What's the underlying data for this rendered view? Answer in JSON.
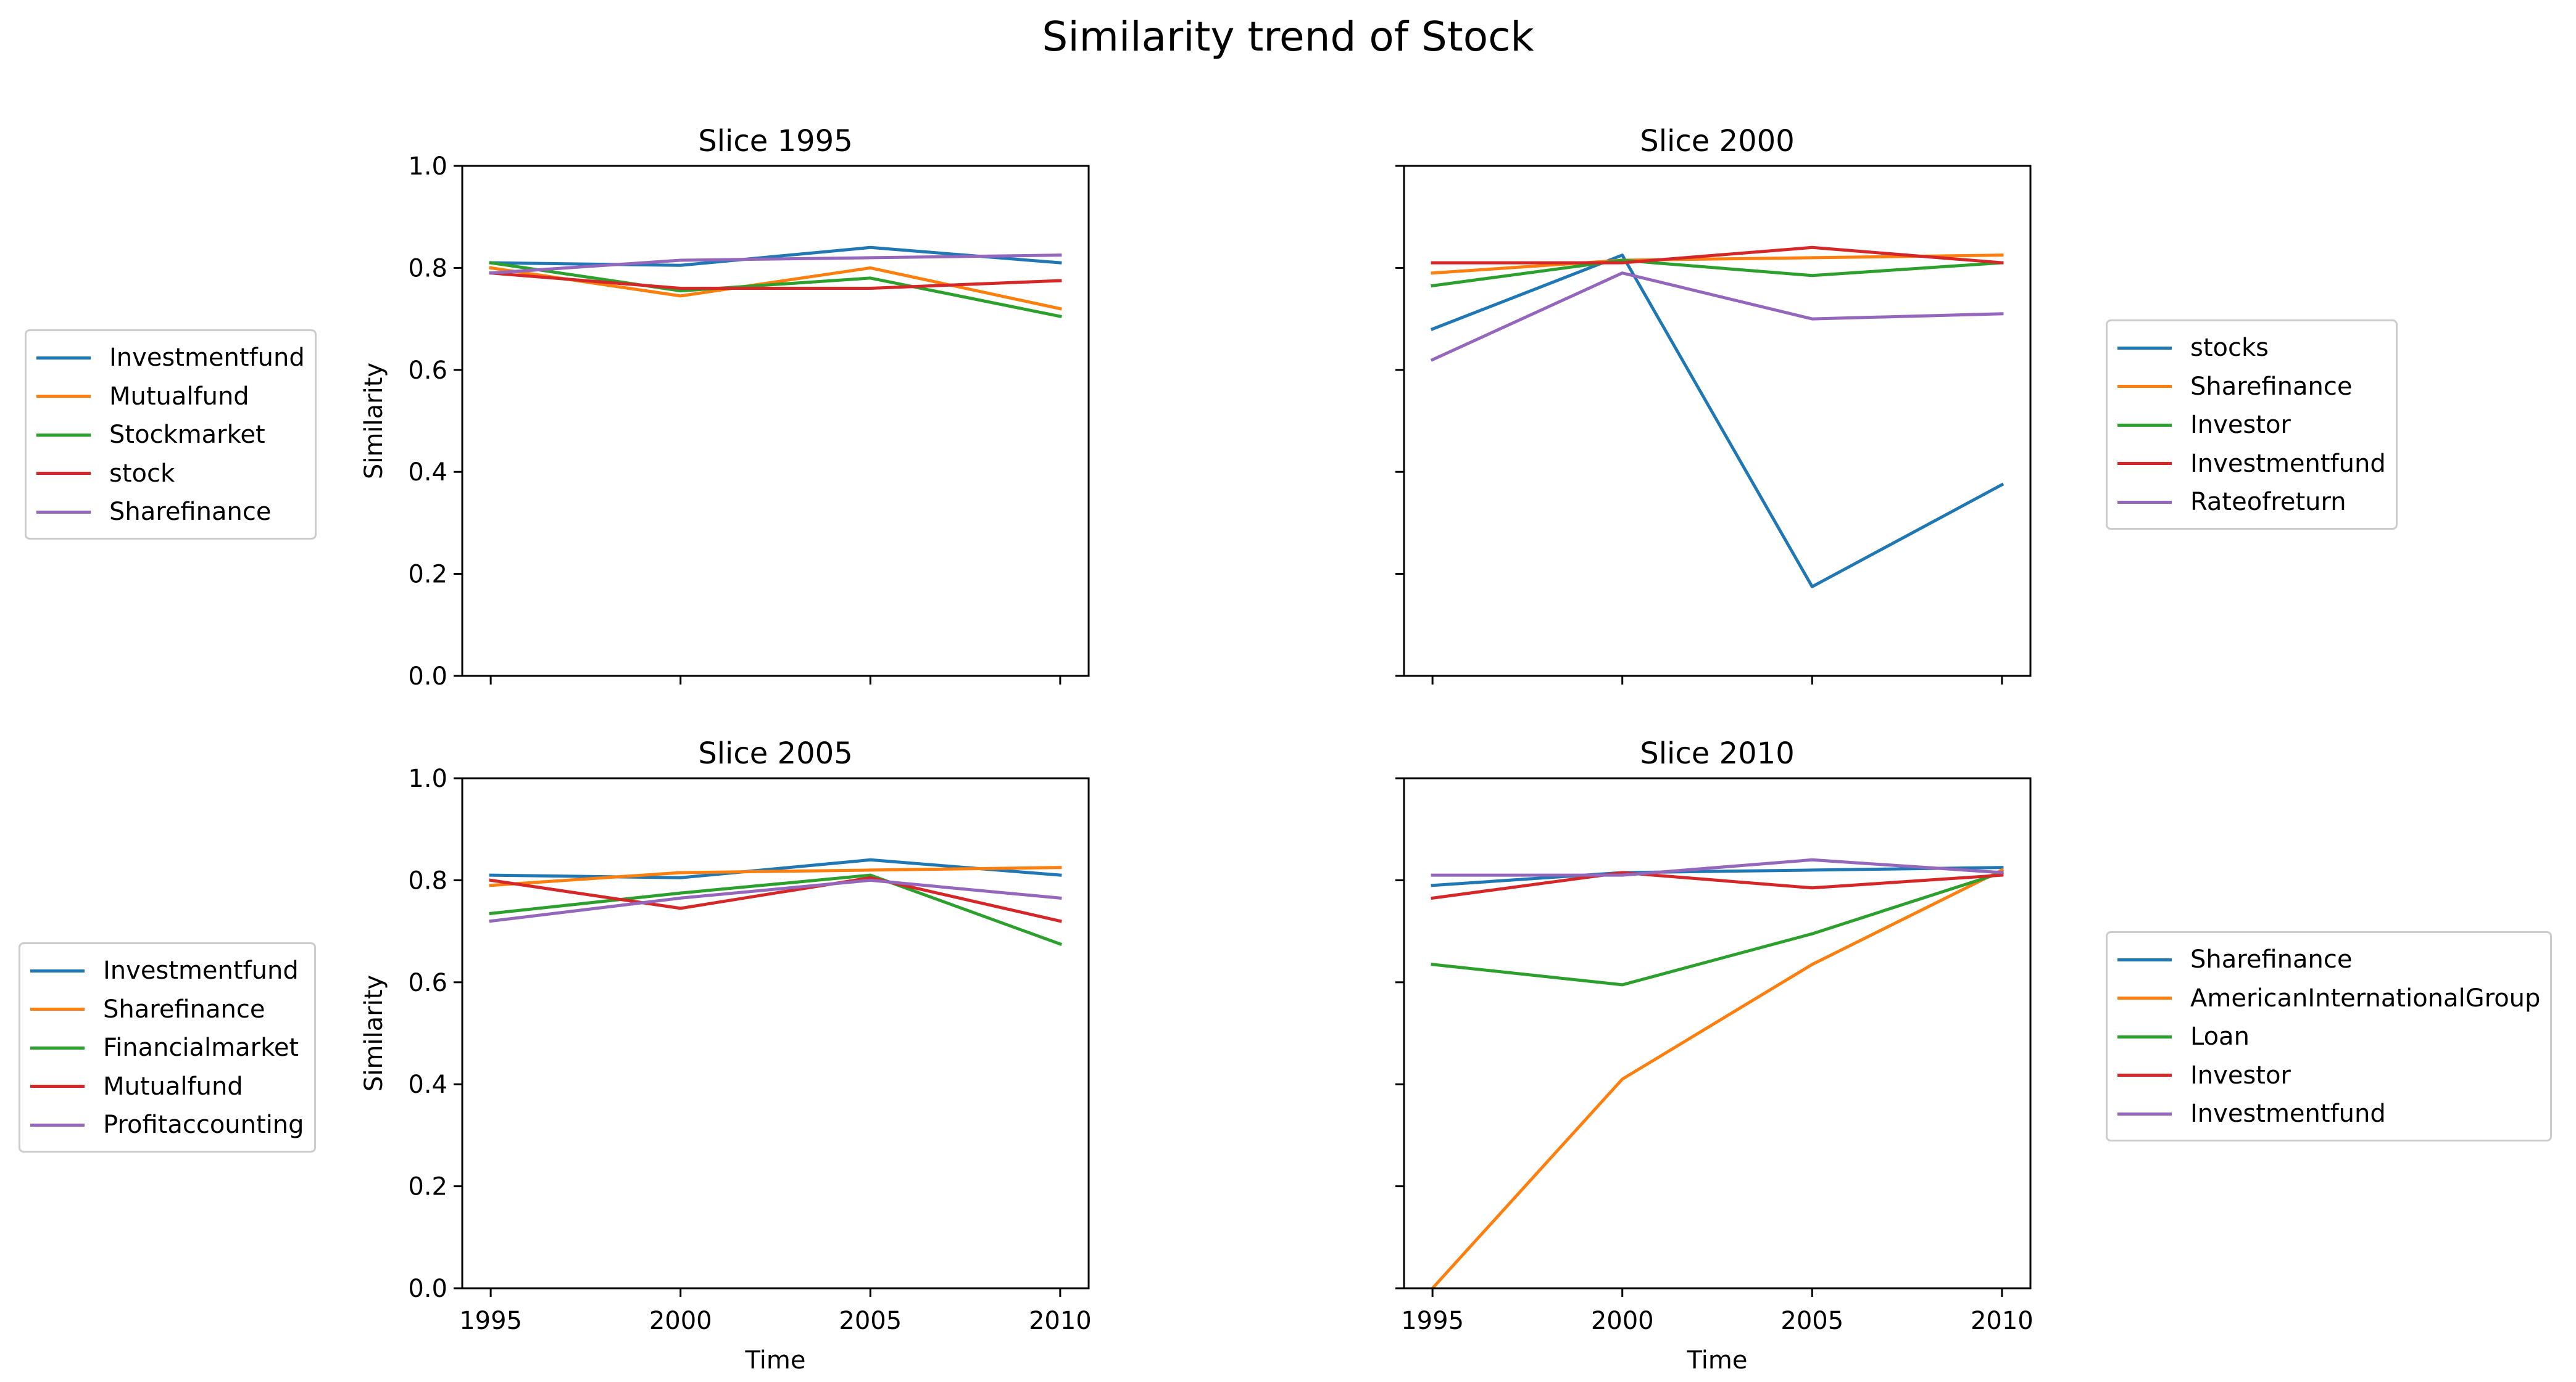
{
  "figure": {
    "title": "Similarity trend of Stock"
  },
  "colors": [
    "#1f77b4",
    "#ff7f0e",
    "#2ca02c",
    "#d62728",
    "#9467bd"
  ],
  "chart_data": [
    {
      "type": "line",
      "title": "Slice 1995",
      "xlabel": "",
      "ylabel": "Similarity",
      "x": [
        1995,
        2000,
        2005,
        2010
      ],
      "xticks": [
        "1995",
        "2000",
        "2005",
        "2010"
      ],
      "show_xticklabels": false,
      "show_yticklabels": true,
      "ylim": [
        0,
        1
      ],
      "yticks": [
        "0.0",
        "0.2",
        "0.4",
        "0.6",
        "0.8",
        "1.0"
      ],
      "grid": false,
      "legend_position": "left",
      "series": [
        {
          "name": "Investmentfund",
          "values": [
            0.81,
            0.805,
            0.84,
            0.81
          ]
        },
        {
          "name": "Mutualfund",
          "values": [
            0.8,
            0.745,
            0.8,
            0.72
          ]
        },
        {
          "name": "Stockmarket",
          "values": [
            0.81,
            0.755,
            0.78,
            0.705
          ]
        },
        {
          "name": "stock",
          "values": [
            0.79,
            0.76,
            0.76,
            0.775
          ]
        },
        {
          "name": "Sharefinance",
          "values": [
            0.79,
            0.815,
            0.82,
            0.825
          ]
        }
      ]
    },
    {
      "type": "line",
      "title": "Slice 2000",
      "xlabel": "",
      "ylabel": "",
      "x": [
        1995,
        2000,
        2005,
        2010
      ],
      "xticks": [
        "1995",
        "2000",
        "2005",
        "2010"
      ],
      "show_xticklabels": false,
      "show_yticklabels": false,
      "ylim": [
        0,
        1
      ],
      "yticks": [
        "0.0",
        "0.2",
        "0.4",
        "0.6",
        "0.8",
        "1.0"
      ],
      "grid": false,
      "legend_position": "right",
      "series": [
        {
          "name": "stocks",
          "values": [
            0.68,
            0.825,
            0.175,
            0.375
          ]
        },
        {
          "name": "Sharefinance",
          "values": [
            0.79,
            0.815,
            0.82,
            0.825
          ]
        },
        {
          "name": "Investor",
          "values": [
            0.765,
            0.815,
            0.785,
            0.81
          ]
        },
        {
          "name": "Investmentfund",
          "values": [
            0.81,
            0.81,
            0.84,
            0.81
          ]
        },
        {
          "name": "Rateofreturn",
          "values": [
            0.62,
            0.79,
            0.7,
            0.71
          ]
        }
      ]
    },
    {
      "type": "line",
      "title": "Slice 2005",
      "xlabel": "Time",
      "ylabel": "Similarity",
      "x": [
        1995,
        2000,
        2005,
        2010
      ],
      "xticks": [
        "1995",
        "2000",
        "2005",
        "2010"
      ],
      "show_xticklabels": true,
      "show_yticklabels": true,
      "ylim": [
        0,
        1
      ],
      "yticks": [
        "0.0",
        "0.2",
        "0.4",
        "0.6",
        "0.8",
        "1.0"
      ],
      "grid": false,
      "legend_position": "left",
      "series": [
        {
          "name": "Investmentfund",
          "values": [
            0.81,
            0.805,
            0.84,
            0.81
          ]
        },
        {
          "name": "Sharefinance",
          "values": [
            0.79,
            0.815,
            0.82,
            0.825
          ]
        },
        {
          "name": "Financialmarket",
          "values": [
            0.735,
            0.775,
            0.81,
            0.675
          ]
        },
        {
          "name": "Mutualfund",
          "values": [
            0.8,
            0.745,
            0.805,
            0.72
          ]
        },
        {
          "name": "Profitaccounting",
          "values": [
            0.72,
            0.765,
            0.8,
            0.765
          ]
        }
      ]
    },
    {
      "type": "line",
      "title": "Slice 2010",
      "xlabel": "Time",
      "ylabel": "",
      "x": [
        1995,
        2000,
        2005,
        2010
      ],
      "xticks": [
        "1995",
        "2000",
        "2005",
        "2010"
      ],
      "show_xticklabels": true,
      "show_yticklabels": false,
      "ylim": [
        0,
        1
      ],
      "yticks": [
        "0.0",
        "0.2",
        "0.4",
        "0.6",
        "0.8",
        "1.0"
      ],
      "grid": false,
      "legend_position": "right",
      "series": [
        {
          "name": "Sharefinance",
          "values": [
            0.79,
            0.815,
            0.82,
            0.825
          ]
        },
        {
          "name": "AmericanInternationalGroup",
          "values": [
            0.0,
            0.41,
            0.635,
            0.82
          ]
        },
        {
          "name": "Loan",
          "values": [
            0.635,
            0.595,
            0.695,
            0.815
          ]
        },
        {
          "name": "Investor",
          "values": [
            0.765,
            0.815,
            0.785,
            0.81
          ]
        },
        {
          "name": "Investmentfund",
          "values": [
            0.81,
            0.81,
            0.84,
            0.815
          ]
        }
      ]
    }
  ]
}
